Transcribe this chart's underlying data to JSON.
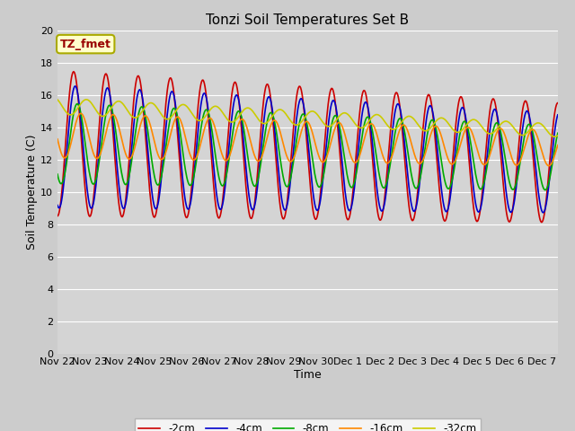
{
  "title": "Tonzi Soil Temperatures Set B",
  "xlabel": "Time",
  "ylabel": "Soil Temperature (C)",
  "ylim": [
    0,
    20
  ],
  "yticks": [
    0,
    2,
    4,
    6,
    8,
    10,
    12,
    14,
    16,
    18,
    20
  ],
  "fig_facecolor": "#cccccc",
  "plot_bg_color": "#d4d4d4",
  "legend_label": "TZ_fmet",
  "legend_bg": "#ffffcc",
  "legend_border": "#aaaa00",
  "series": [
    {
      "label": "-2cm",
      "color": "#cc0000",
      "linewidth": 1.2
    },
    {
      "label": "-4cm",
      "color": "#0000cc",
      "linewidth": 1.2
    },
    {
      "label": "-8cm",
      "color": "#00aa00",
      "linewidth": 1.2
    },
    {
      "label": "-16cm",
      "color": "#ff8800",
      "linewidth": 1.2
    },
    {
      "label": "-32cm",
      "color": "#cccc00",
      "linewidth": 1.2
    }
  ],
  "n_days": 15.5,
  "n_points": 744,
  "xtick_positions": [
    0,
    1,
    2,
    3,
    4,
    5,
    6,
    7,
    8,
    9,
    10,
    11,
    12,
    13,
    14,
    15
  ],
  "xtick_labels": [
    "Nov 22",
    "Nov 23",
    "Nov 24",
    "Nov 25",
    "Nov 26",
    "Nov 27",
    "Nov 28",
    "Nov 29",
    "Nov 30",
    "Dec 1",
    "Dec 2",
    "Dec 3",
    "Dec 4",
    "Dec 5",
    "Dec 6",
    "Dec 7"
  ]
}
